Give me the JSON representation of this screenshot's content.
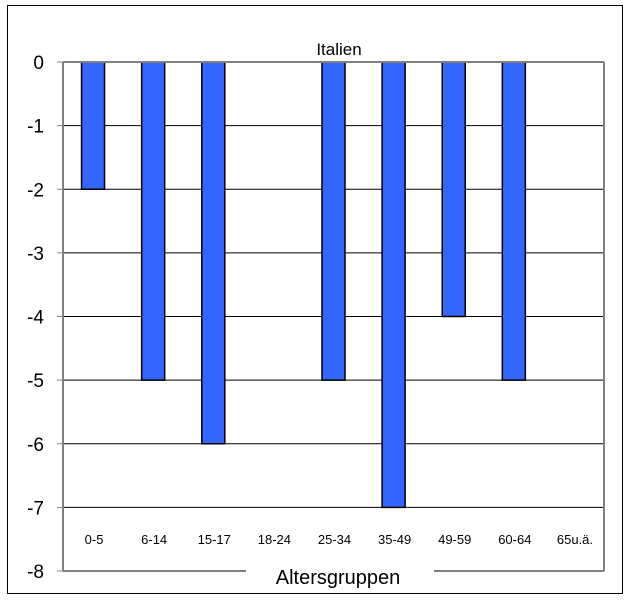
{
  "chart_data": {
    "type": "bar",
    "title": "Italien",
    "xlabel": "Altersgruppen",
    "ylabel": "",
    "categories": [
      "0-5",
      "6-14",
      "15-17",
      "18-24",
      "25-34",
      "35-49",
      "49-59",
      "60-64",
      "65u.ä."
    ],
    "values": [
      -2,
      -5,
      -6,
      0,
      -5,
      -7,
      -4,
      -5,
      0
    ],
    "ylim": [
      -8,
      0
    ],
    "yticks": [
      "0",
      "-1",
      "-2",
      "-3",
      "-4",
      "-5",
      "-6",
      "-7",
      "-8"
    ],
    "grid": true,
    "legend": "none",
    "colors": {
      "bar_fill": "#3366ff",
      "bar_stroke": "#000000",
      "axis": "#808080",
      "grid": "#000000",
      "frame": "#000000"
    }
  }
}
